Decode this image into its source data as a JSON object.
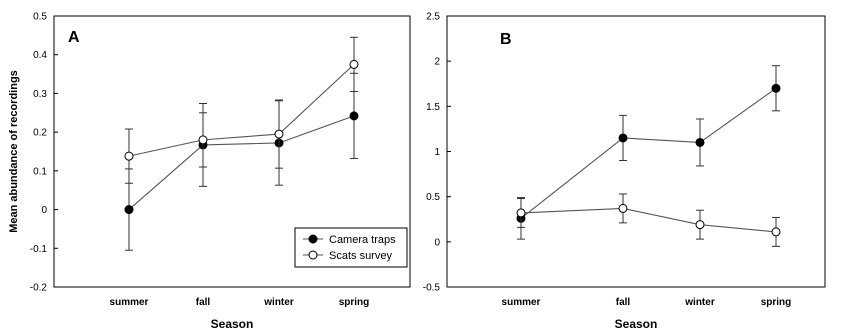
{
  "chart_data": [
    {
      "type": "line",
      "panel_label": "A",
      "categories": [
        "summer",
        "fall",
        "winter",
        "spring"
      ],
      "xlabel": "Season",
      "ylabel": "Mean abundance of recordings",
      "ylim": [
        -0.2,
        0.5
      ],
      "yticks": [
        "-0.2",
        "-0.1",
        "0",
        "0.1",
        "0.2",
        "0.3",
        "0.4",
        "0.5"
      ],
      "legend_position": "bottom-right",
      "series": [
        {
          "name": "Camera traps",
          "marker": "filled-circle",
          "values": [
            0.0,
            0.167,
            0.172,
            0.242
          ],
          "error": [
            0.105,
            0.107,
            0.109,
            0.11
          ]
        },
        {
          "name": "Scats survey",
          "marker": "open-circle",
          "values": [
            0.138,
            0.18,
            0.195,
            0.375
          ],
          "error": [
            0.07,
            0.07,
            0.088,
            0.07
          ]
        }
      ]
    },
    {
      "type": "line",
      "panel_label": "B",
      "categories": [
        "summer",
        "fall",
        "winter",
        "spring"
      ],
      "xlabel": "Season",
      "ylabel": "",
      "ylim": [
        -0.5,
        2.5
      ],
      "yticks": [
        "-0.5",
        "0",
        "0.5",
        "1",
        "1.5",
        "2",
        "2.5"
      ],
      "series": [
        {
          "name": "Camera traps",
          "marker": "filled-circle",
          "values": [
            0.26,
            1.15,
            1.1,
            1.7
          ],
          "error": [
            0.23,
            0.25,
            0.26,
            0.25
          ]
        },
        {
          "name": "Scats survey",
          "marker": "open-circle",
          "values": [
            0.32,
            0.37,
            0.19,
            0.11
          ],
          "error": [
            0.16,
            0.16,
            0.16,
            0.16
          ]
        }
      ]
    }
  ]
}
